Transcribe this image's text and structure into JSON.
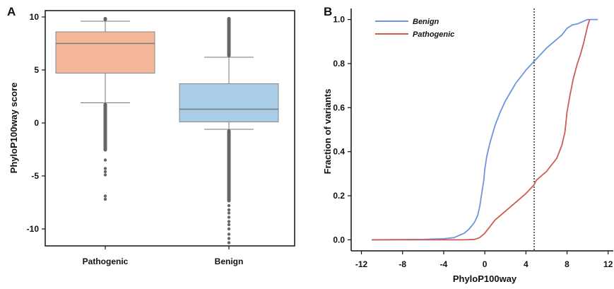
{
  "colors": {
    "pathogenic_fill": "#f4b79a",
    "benign_fill": "#a9cde6",
    "pathogenic_line": "#cd5c55",
    "benign_line": "#6f93dc",
    "median_line": "#7a7a7a",
    "outlier": "#666666",
    "axis": "#111111"
  },
  "chart_data": [
    {
      "panel": "A",
      "type": "box",
      "ylabel": "PhyloP100way score",
      "xlabel": "",
      "ylim": [
        -11.6,
        10.6
      ],
      "yticks": [
        -10,
        -5,
        0,
        5,
        10
      ],
      "categories": [
        "Pathogenic",
        "Benign"
      ],
      "boxes": [
        {
          "name": "Pathogenic",
          "whisker_low": 1.9,
          "q1": 4.7,
          "median": 7.5,
          "q3": 8.6,
          "whisker_high": 9.6,
          "outliers_high_dense": [
            9.6,
            10.0
          ],
          "outliers_low_dense": [
            -2.7,
            1.9
          ],
          "outliers_low_sparse": [
            -3.5,
            -4.3,
            -4.6,
            -4.9,
            -6.9,
            -7.2
          ]
        },
        {
          "name": "Benign",
          "whisker_low": -0.6,
          "q1": 0.1,
          "median": 1.3,
          "q3": 3.7,
          "whisker_high": 6.2,
          "outliers_high_dense": [
            6.2,
            10.0
          ],
          "outliers_low_dense": [
            -7.5,
            -0.6
          ],
          "outliers_low_sparse": [
            -7.8,
            -8.2,
            -8.5,
            -8.9,
            -9.3,
            -9.6,
            -10.0,
            -10.5,
            -10.9,
            -11.3
          ]
        }
      ]
    },
    {
      "panel": "B",
      "type": "line",
      "xlabel": "PhyloP100way",
      "ylabel": "Fraction of variants",
      "xlim": [
        -13,
        12.5
      ],
      "ylim": [
        -0.05,
        1.05
      ],
      "xticks": [
        -12,
        -8,
        -4,
        0,
        4,
        8,
        12
      ],
      "yticks": [
        0.0,
        0.2,
        0.4,
        0.6,
        0.8,
        1.0
      ],
      "ytick_labels": [
        "0.0",
        "0.2",
        "0.4",
        "0.6",
        "0.8",
        "1.0"
      ],
      "legend_position": "top-left",
      "vline_x": 4.8,
      "series": [
        {
          "name": "Benign",
          "x": [
            -11,
            -6,
            -4,
            -3,
            -2,
            -1.5,
            -1,
            -0.7,
            -0.5,
            -0.3,
            -0.1,
            0,
            0.2,
            0.5,
            1,
            1.5,
            2,
            3,
            4,
            4.8,
            5,
            6,
            7,
            7.5,
            8,
            8.5,
            9,
            9.5,
            10,
            11
          ],
          "y": [
            0.0,
            0.002,
            0.005,
            0.01,
            0.03,
            0.05,
            0.08,
            0.11,
            0.15,
            0.21,
            0.27,
            0.32,
            0.38,
            0.44,
            0.52,
            0.58,
            0.63,
            0.71,
            0.77,
            0.81,
            0.82,
            0.87,
            0.91,
            0.93,
            0.96,
            0.975,
            0.98,
            0.99,
            1.0,
            1.0
          ]
        },
        {
          "name": "Pathogenic",
          "x": [
            -11,
            -4,
            -2,
            -1,
            -0.5,
            0,
            0.5,
            1,
            2,
            3,
            4,
            4.8,
            5,
            6,
            7,
            7.5,
            7.8,
            8,
            8.3,
            8.6,
            9,
            9.3,
            9.6,
            10,
            10.2
          ],
          "y": [
            0.0,
            0.0,
            0.0,
            0.002,
            0.01,
            0.03,
            0.06,
            0.09,
            0.13,
            0.17,
            0.21,
            0.25,
            0.27,
            0.31,
            0.37,
            0.43,
            0.49,
            0.58,
            0.66,
            0.73,
            0.8,
            0.84,
            0.89,
            0.97,
            1.0
          ]
        }
      ]
    }
  ]
}
